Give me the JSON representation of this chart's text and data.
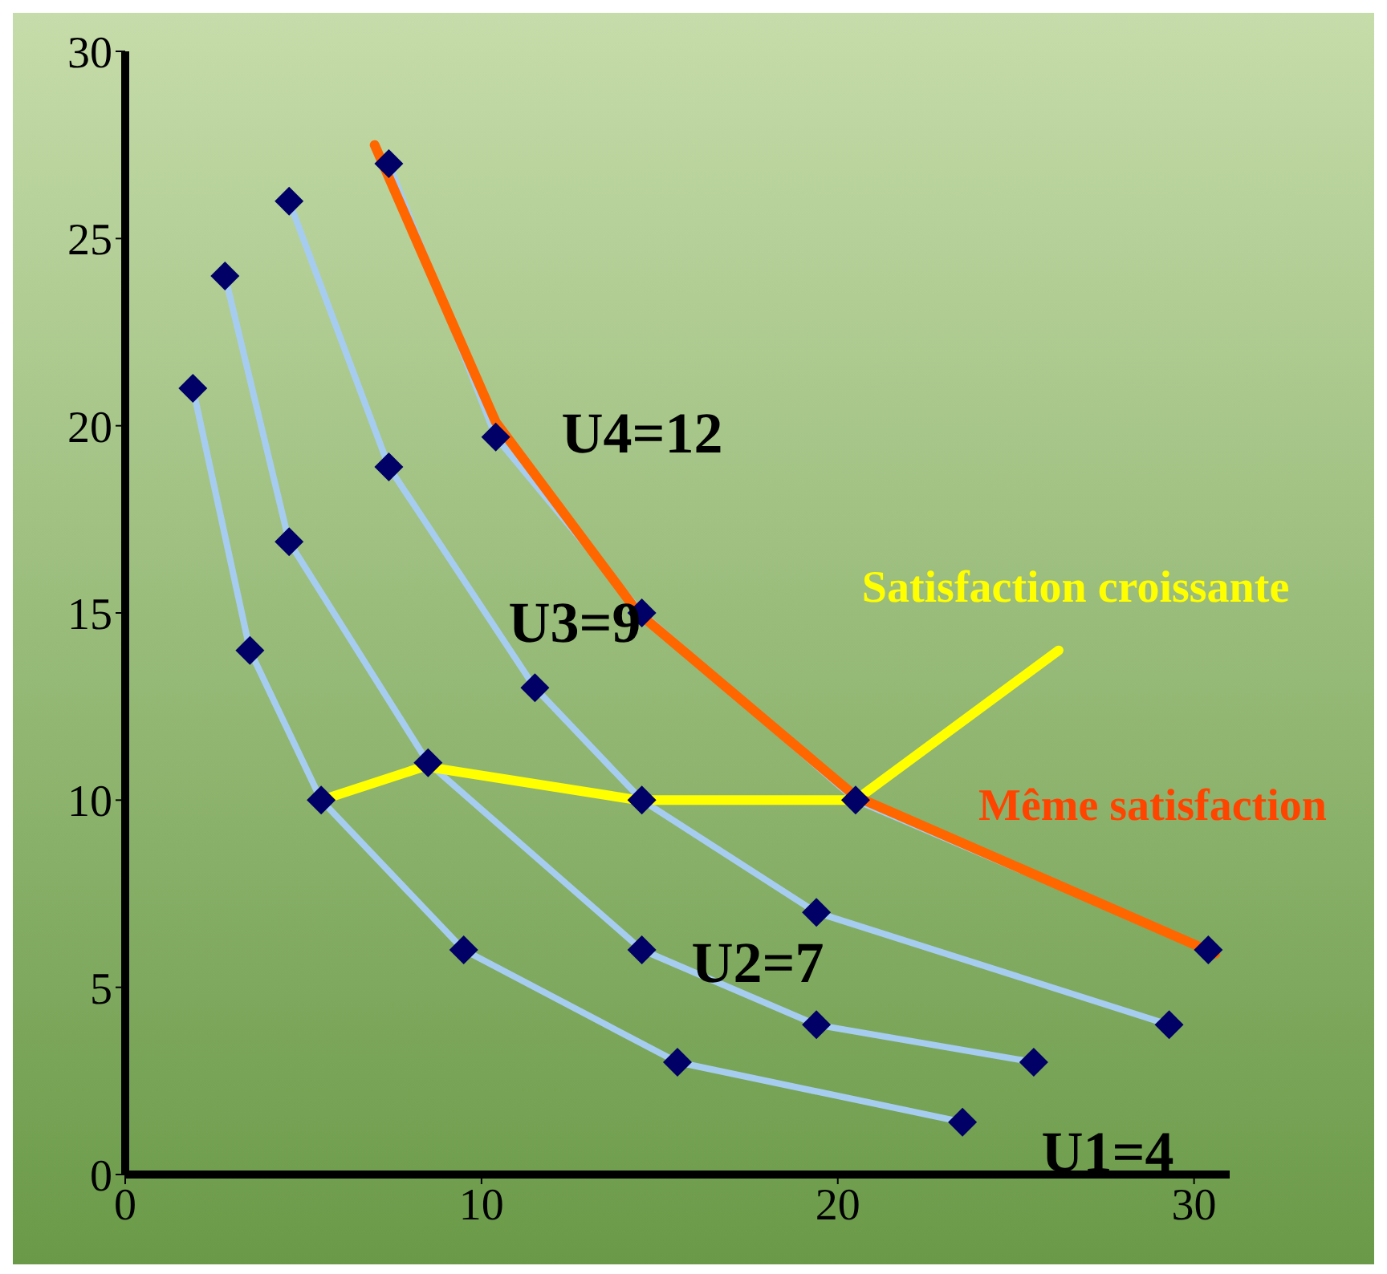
{
  "chart_data": {
    "type": "line",
    "xlim": [
      0,
      31
    ],
    "xticks": [
      0,
      10,
      20,
      30
    ],
    "ylim": [
      0,
      30
    ],
    "yticks": [
      0,
      5,
      10,
      15,
      20,
      25,
      30
    ],
    "grid": false,
    "marker": "diamond",
    "line_style": "solid",
    "series": [
      {
        "color": "#a6cdf0",
        "x": [
          1.9,
          3.5,
          5.5,
          9.5,
          15.5,
          23.5
        ],
        "values": [
          21,
          14,
          10,
          6,
          3,
          1.4
        ]
      },
      {
        "color": "#a6cdf0",
        "x": [
          2.8,
          4.6,
          8.5,
          14.5,
          19.4,
          25.5
        ],
        "values": [
          24,
          16.9,
          11,
          6,
          4,
          3
        ]
      },
      {
        "color": "#a6cdf0",
        "x": [
          4.6,
          7.4,
          11.5,
          14.5,
          19.4,
          29.3
        ],
        "values": [
          26,
          18.9,
          13,
          10,
          7,
          4
        ]
      },
      {
        "color": "#a6cdf0",
        "x": [
          7.4,
          10.4,
          14.5,
          20.5,
          30.4
        ],
        "values": [
          27,
          19.7,
          15,
          10,
          6
        ]
      },
      {
        "color": "#ffff00",
        "marker": "none",
        "x": [
          5.5,
          8.4,
          14.4,
          20.5,
          26.2
        ],
        "values": [
          10,
          10.9,
          10,
          10,
          14
        ]
      },
      {
        "color": "#ff6600",
        "marker": "none",
        "x": [
          7,
          10.4,
          14.4,
          20.5,
          30.6
        ],
        "values": [
          27.5,
          20.1,
          15,
          10.1,
          5.9
        ]
      }
    ],
    "annotations": [
      "U4=12",
      "U3=9",
      "U2=7",
      "U1=4",
      "Satisfaction croissante",
      "Même satisfaction"
    ]
  }
}
